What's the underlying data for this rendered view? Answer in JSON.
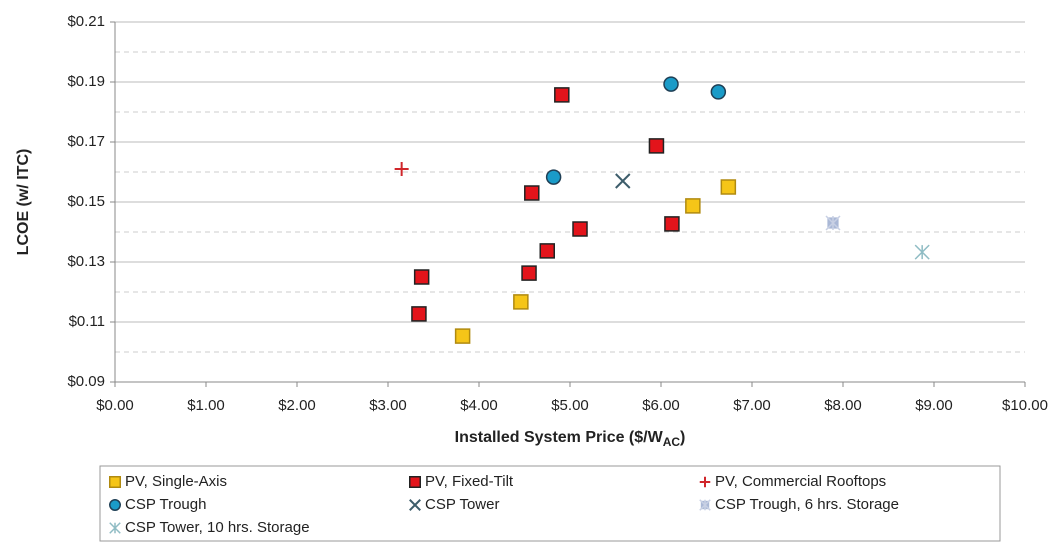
{
  "chart_data": {
    "type": "scatter",
    "y_label": "LCOE (w/ ITC)",
    "x_label": {
      "text": "Installed System Price ($/W",
      "subscript": "AC",
      "suffix": ")"
    },
    "xlim": [
      0,
      10
    ],
    "xticks": [
      {
        "value": 0,
        "label": "$0.00"
      },
      {
        "value": 1,
        "label": "$1.00"
      },
      {
        "value": 2,
        "label": "$2.00"
      },
      {
        "value": 3,
        "label": "$3.00"
      },
      {
        "value": 4,
        "label": "$4.00"
      },
      {
        "value": 5,
        "label": "$5.00"
      },
      {
        "value": 6,
        "label": "$6.00"
      },
      {
        "value": 7,
        "label": "$7.00"
      },
      {
        "value": 8,
        "label": "$8.00"
      },
      {
        "value": 9,
        "label": "$9.00"
      },
      {
        "value": 10,
        "label": "$10.00"
      }
    ],
    "ylim": [
      0.09,
      0.21
    ],
    "yticks": [
      {
        "value": 0.09,
        "label": "$0.09"
      },
      {
        "value": 0.11,
        "label": "$0.11"
      },
      {
        "value": 0.13,
        "label": "$0.13"
      },
      {
        "value": 0.15,
        "label": "$0.15"
      },
      {
        "value": 0.17,
        "label": "$0.17"
      },
      {
        "value": 0.19,
        "label": "$0.19"
      },
      {
        "value": 0.21,
        "label": "$0.21"
      }
    ],
    "minor_yticks": [
      0.1,
      0.12,
      0.14,
      0.16,
      0.18,
      0.2
    ],
    "grid": true,
    "legend": "bottom",
    "series": [
      {
        "name": "PV, Single-Axis",
        "color": "#f5c518",
        "marker": "square",
        "x": [
          3.82,
          4.46,
          6.35,
          6.74
        ],
        "values": [
          0.1053,
          0.1167,
          0.1487,
          0.155
        ]
      },
      {
        "name": "PV, Fixed-Tilt",
        "color": "#e3141b",
        "marker": "square",
        "x": [
          4.91,
          5.95,
          4.58,
          5.11,
          6.12,
          4.75,
          4.55,
          3.37,
          3.34
        ],
        "values": [
          0.1857,
          0.1687,
          0.153,
          0.141,
          0.1427,
          0.1337,
          0.1263,
          0.125,
          0.1127
        ]
      },
      {
        "name": "PV, Commercial Rooftops",
        "color": "#d0262b",
        "marker": "plus",
        "x": [
          3.15
        ],
        "values": [
          0.161
        ]
      },
      {
        "name": "CSP Trough",
        "color": "#1a9bc8",
        "marker": "circle",
        "x": [
          6.11,
          6.63,
          4.82
        ],
        "values": [
          0.1893,
          0.1867,
          0.1583
        ]
      },
      {
        "name": "CSP Tower",
        "color": "#3d5d6b",
        "marker": "x",
        "x": [
          5.58
        ],
        "values": [
          0.157
        ]
      },
      {
        "name": "CSP Trough, 6 hrs. Storage",
        "color": "#aab8d6",
        "marker": "star-square",
        "x": [
          7.89
        ],
        "values": [
          0.143
        ]
      },
      {
        "name": "CSP Tower, 10 hrs. Storage",
        "color": "#8fbcc4",
        "marker": "star",
        "x": [
          8.87
        ],
        "values": [
          0.1333
        ]
      }
    ]
  }
}
